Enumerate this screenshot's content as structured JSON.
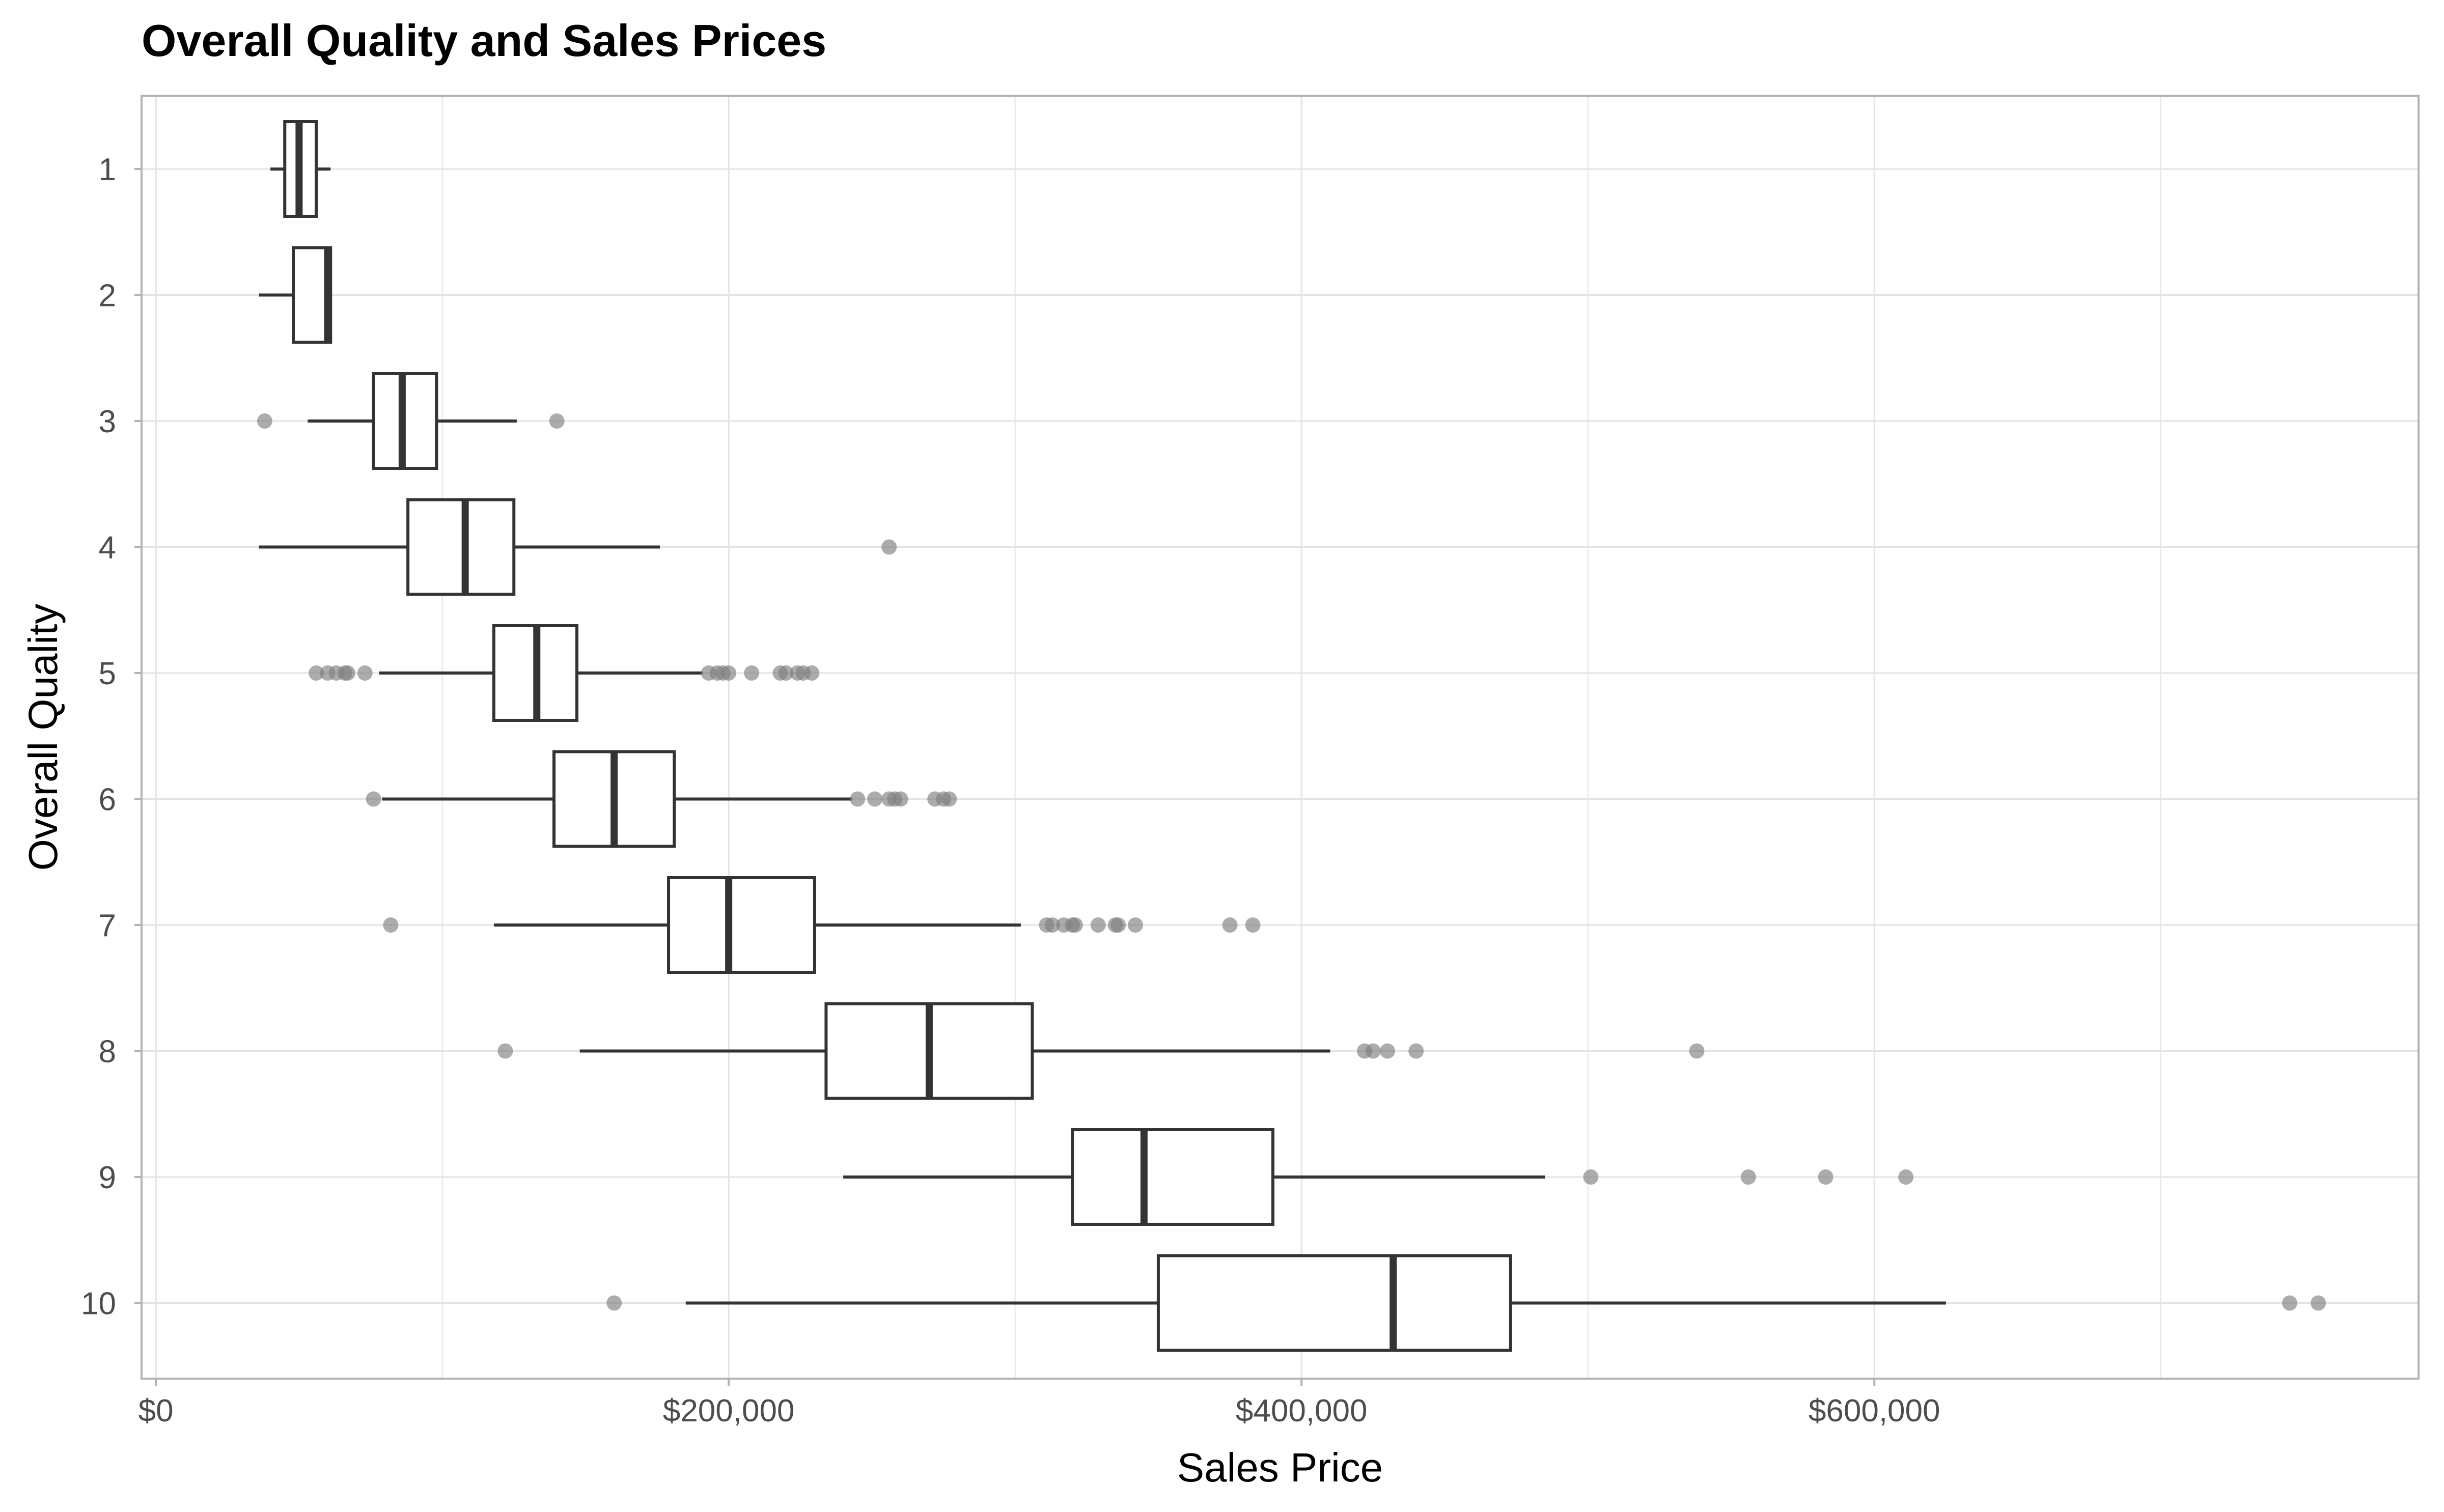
{
  "chart_data": {
    "type": "boxplot",
    "orientation": "horizontal",
    "title": "Overall Quality and Sales Prices",
    "xlabel": "Sales Price",
    "ylabel": "Overall Quality",
    "xlim": [
      -5000,
      790000
    ],
    "x_ticks": [
      0,
      200000,
      400000,
      600000
    ],
    "x_tick_labels": [
      "$0",
      "$200,000",
      "$400,000",
      "$600,000"
    ],
    "x_minor_ticks": [
      100000,
      300000,
      500000,
      700000
    ],
    "categories": [
      "1",
      "2",
      "3",
      "4",
      "5",
      "6",
      "7",
      "8",
      "9",
      "10"
    ],
    "grid": true,
    "legend": "none",
    "colors": {
      "box_fill": "#ffffff",
      "box_stroke": "#333333",
      "outlier": "#7f7f7f",
      "grid": "#e3e3e3",
      "panel_border": "#b3b3b3"
    },
    "boxes": [
      {
        "category": "1",
        "whisker_low": 40000,
        "q1": 45000,
        "median": 50000,
        "q3": 56000,
        "whisker_high": 61000,
        "outliers": []
      },
      {
        "category": "2",
        "whisker_low": 36000,
        "q1": 48000,
        "median": 60000,
        "q3": 61000,
        "whisker_high": 61000,
        "outliers": []
      },
      {
        "category": "3",
        "whisker_low": 53000,
        "q1": 76000,
        "median": 86000,
        "q3": 98000,
        "whisker_high": 126000,
        "outliers": [
          38000,
          140000
        ]
      },
      {
        "category": "4",
        "whisker_low": 36000,
        "q1": 88000,
        "median": 108000,
        "q3": 125000,
        "whisker_high": 176000,
        "outliers": [
          256000
        ]
      },
      {
        "category": "5",
        "whisker_low": 78000,
        "q1": 118000,
        "median": 133000,
        "q3": 147000,
        "whisker_high": 191000,
        "outliers": [
          56000,
          60000,
          63000,
          66000,
          67000,
          73000,
          193000,
          196000,
          198000,
          200000,
          208000,
          218000,
          220000,
          224000,
          226000,
          229000
        ]
      },
      {
        "category": "6",
        "whisker_low": 79000,
        "q1": 139000,
        "median": 160000,
        "q3": 181000,
        "whisker_high": 243000,
        "outliers": [
          76000,
          245000,
          251000,
          256000,
          258000,
          260000,
          272000,
          275000,
          277000
        ]
      },
      {
        "category": "7",
        "whisker_low": 118000,
        "q1": 179000,
        "median": 200000,
        "q3": 230000,
        "whisker_high": 302000,
        "outliers": [
          82000,
          311000,
          313000,
          317000,
          320000,
          321000,
          329000,
          335000,
          336000,
          342000,
          375000,
          383000
        ]
      },
      {
        "category": "8",
        "whisker_low": 148000,
        "q1": 234000,
        "median": 270000,
        "q3": 306000,
        "whisker_high": 410000,
        "outliers": [
          122000,
          422000,
          425000,
          430000,
          440000,
          538000
        ]
      },
      {
        "category": "9",
        "whisker_low": 240000,
        "q1": 320000,
        "median": 345000,
        "q3": 390000,
        "whisker_high": 485000,
        "outliers": [
          501000,
          556000,
          583000,
          611000
        ]
      },
      {
        "category": "10",
        "whisker_low": 185000,
        "q1": 350000,
        "median": 432000,
        "q3": 473000,
        "whisker_high": 625000,
        "outliers": [
          160000,
          745000,
          755000
        ]
      }
    ]
  }
}
